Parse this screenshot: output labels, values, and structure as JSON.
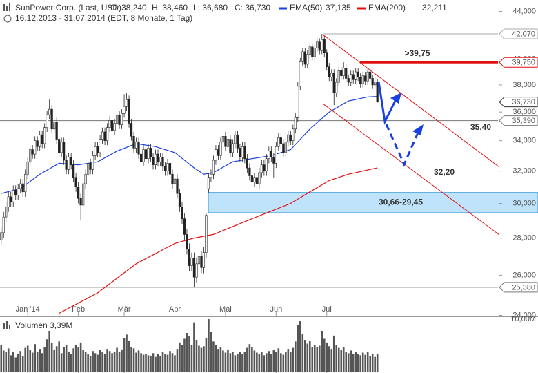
{
  "chart_data": {
    "type": "candlestick",
    "title": "SunPower Corp. (Last, USD)",
    "header_values": [
      "O: 38,240",
      "H: 38,460",
      "L: 36,680",
      "C: 36,730"
    ],
    "subtitle": "16.12.2013 - 31.07.2014 (EDT, 8 Monate, 1 Tag)",
    "xlim": [
      -0.5,
      206
    ],
    "xticks": [
      {
        "value": 11,
        "label": "Jan '14"
      },
      {
        "value": 32,
        "label": "Feb"
      },
      {
        "value": 51,
        "label": "Mär"
      },
      {
        "value": 72,
        "label": "Apr"
      },
      {
        "value": 93,
        "label": "Mai"
      },
      {
        "value": 114,
        "label": "Jun"
      },
      {
        "value": 135,
        "label": "Jul"
      }
    ],
    "ylim": [
      24,
      44
    ],
    "log_scale": true,
    "yticks": [
      {
        "value": 24,
        "label": "24,000"
      },
      {
        "value": 26,
        "label": "26,000"
      },
      {
        "value": 28,
        "label": "28,000"
      },
      {
        "value": 30,
        "label": "30,000"
      },
      {
        "value": 32,
        "label": "32,000"
      },
      {
        "value": 34,
        "label": "34,000"
      },
      {
        "value": 36,
        "label": "36,000"
      },
      {
        "value": 38,
        "label": "38,000"
      },
      {
        "value": 40,
        "label": "40,000"
      },
      {
        "value": 42,
        "label": "42,000"
      },
      {
        "value": 44,
        "label": "44,000"
      }
    ],
    "up_color": "#ffffff",
    "down_color": "#222222",
    "ohlc": [
      [
        27.9,
        28.6,
        27.6,
        28.3
      ],
      [
        28.3,
        29.5,
        28.0,
        29.2
      ],
      [
        29.2,
        30.1,
        28.9,
        29.8
      ],
      [
        29.8,
        30.7,
        29.5,
        30.4
      ],
      [
        30.4,
        30.7,
        29.8,
        30.1
      ],
      [
        30.1,
        31.1,
        29.8,
        30.8
      ],
      [
        30.8,
        31.1,
        30.2,
        30.5
      ],
      [
        30.5,
        31.2,
        30.2,
        30.9
      ],
      [
        30.9,
        31.5,
        30.6,
        31.2
      ],
      [
        31.2,
        31.5,
        30.4,
        30.7
      ],
      [
        30.7,
        32.1,
        30.4,
        31.8
      ],
      [
        31.8,
        32.9,
        31.5,
        32.6
      ],
      [
        32.6,
        33.7,
        32.3,
        33.4
      ],
      [
        33.4,
        33.7,
        32.8,
        33.1
      ],
      [
        33.1,
        34.3,
        32.8,
        34.0
      ],
      [
        34.0,
        34.3,
        33.3,
        33.6
      ],
      [
        33.6,
        34.7,
        33.3,
        34.4
      ],
      [
        34.4,
        34.7,
        33.5,
        33.8
      ],
      [
        33.8,
        35.2,
        33.5,
        34.9
      ],
      [
        34.9,
        36.1,
        34.6,
        35.8
      ],
      [
        35.8,
        36.9,
        35.5,
        36.2
      ],
      [
        36.2,
        36.5,
        34.5,
        34.8
      ],
      [
        34.8,
        35.6,
        34.5,
        35.3
      ],
      [
        35.3,
        35.6,
        33.8,
        34.1
      ],
      [
        34.1,
        34.4,
        32.9,
        33.2
      ],
      [
        33.2,
        34.2,
        32.9,
        33.9
      ],
      [
        33.9,
        34.2,
        32.4,
        32.7
      ],
      [
        32.7,
        33.0,
        31.8,
        32.1
      ],
      [
        32.1,
        33.2,
        31.8,
        32.9
      ],
      [
        32.9,
        33.2,
        32.1,
        32.4
      ],
      [
        32.4,
        32.7,
        31.3,
        31.6
      ],
      [
        31.6,
        31.9,
        30.7,
        31.0
      ],
      [
        31.0,
        31.3,
        30.0,
        30.3
      ],
      [
        30.3,
        30.6,
        29.0,
        29.9
      ],
      [
        29.9,
        31.5,
        29.6,
        31.2
      ],
      [
        31.2,
        32.1,
        30.9,
        31.8
      ],
      [
        31.8,
        32.8,
        31.5,
        32.5
      ],
      [
        32.5,
        32.8,
        31.8,
        32.1
      ],
      [
        32.1,
        33.3,
        31.8,
        33.0
      ],
      [
        33.0,
        33.9,
        32.7,
        33.6
      ],
      [
        33.6,
        33.9,
        32.9,
        33.2
      ],
      [
        33.2,
        34.4,
        32.9,
        34.1
      ],
      [
        34.1,
        34.9,
        33.8,
        34.6
      ],
      [
        34.6,
        34.9,
        33.7,
        34.0
      ],
      [
        34.0,
        35.2,
        33.7,
        34.9
      ],
      [
        34.9,
        35.7,
        34.6,
        35.4
      ],
      [
        35.4,
        35.7,
        34.4,
        34.7
      ],
      [
        34.7,
        35.5,
        34.4,
        35.2
      ],
      [
        35.2,
        36.1,
        34.9,
        35.8
      ],
      [
        35.8,
        36.1,
        34.8,
        35.1
      ],
      [
        35.1,
        36.2,
        34.8,
        35.9
      ],
      [
        35.9,
        37.3,
        35.6,
        36.4
      ],
      [
        36.4,
        37.4,
        36.1,
        36.9
      ],
      [
        36.9,
        37.2,
        34.9,
        35.2
      ],
      [
        35.2,
        35.5,
        34.0,
        34.3
      ],
      [
        34.3,
        34.6,
        33.2,
        33.5
      ],
      [
        33.5,
        34.2,
        33.2,
        33.9
      ],
      [
        33.9,
        34.2,
        32.8,
        33.1
      ],
      [
        33.1,
        33.4,
        32.3,
        32.6
      ],
      [
        32.6,
        33.7,
        32.3,
        33.4
      ],
      [
        33.4,
        33.7,
        32.5,
        32.8
      ],
      [
        32.8,
        33.8,
        32.5,
        33.5
      ],
      [
        33.5,
        33.8,
        32.6,
        32.9
      ],
      [
        32.9,
        33.2,
        32.1,
        32.4
      ],
      [
        32.4,
        33.4,
        32.1,
        33.1
      ],
      [
        33.1,
        33.4,
        32.3,
        32.6
      ],
      [
        32.6,
        33.2,
        32.3,
        32.9
      ],
      [
        32.9,
        33.2,
        32.0,
        32.3
      ],
      [
        32.3,
        32.6,
        31.7,
        32.0
      ],
      [
        32.0,
        32.8,
        31.7,
        32.5
      ],
      [
        32.5,
        32.8,
        31.5,
        31.8
      ],
      [
        31.8,
        32.1,
        30.9,
        31.2
      ],
      [
        31.2,
        31.8,
        30.9,
        31.5
      ],
      [
        31.5,
        31.8,
        30.3,
        30.6
      ],
      [
        30.6,
        30.9,
        29.5,
        29.8
      ],
      [
        29.8,
        30.1,
        28.8,
        29.1
      ],
      [
        29.1,
        29.4,
        27.9,
        28.2
      ],
      [
        28.2,
        28.5,
        27.1,
        27.4
      ],
      [
        27.4,
        27.7,
        26.2,
        26.5
      ],
      [
        26.5,
        27.2,
        26.2,
        26.9
      ],
      [
        26.9,
        27.2,
        25.38,
        25.9
      ],
      [
        25.9,
        26.9,
        25.6,
        26.6
      ],
      [
        26.6,
        27.3,
        26.3,
        27.0
      ],
      [
        27.0,
        27.3,
        26.1,
        26.4
      ],
      [
        26.4,
        27.5,
        26.1,
        27.2
      ],
      [
        27.2,
        29.45,
        26.9,
        29.3
      ],
      [
        30.9,
        31.9,
        30.66,
        31.6
      ],
      [
        31.6,
        32.1,
        31.3,
        31.8
      ],
      [
        31.8,
        33.0,
        31.5,
        32.7
      ],
      [
        32.7,
        33.7,
        32.4,
        33.4
      ],
      [
        33.4,
        33.7,
        32.7,
        33.0
      ],
      [
        33.0,
        34.2,
        32.7,
        33.9
      ],
      [
        33.9,
        34.6,
        33.6,
        34.3
      ],
      [
        34.3,
        34.6,
        33.3,
        33.6
      ],
      [
        33.6,
        34.4,
        33.3,
        34.1
      ],
      [
        34.1,
        34.4,
        32.9,
        33.2
      ],
      [
        33.2,
        34.1,
        32.9,
        33.8
      ],
      [
        33.8,
        34.7,
        33.5,
        34.4
      ],
      [
        34.4,
        34.7,
        33.2,
        33.5
      ],
      [
        33.5,
        33.8,
        32.6,
        32.9
      ],
      [
        32.9,
        33.9,
        32.6,
        33.6
      ],
      [
        33.6,
        33.9,
        32.5,
        32.8
      ],
      [
        32.8,
        33.1,
        31.9,
        32.2
      ],
      [
        32.2,
        32.5,
        31.4,
        31.7
      ],
      [
        31.7,
        32.0,
        31.0,
        31.3
      ],
      [
        31.3,
        31.9,
        31.0,
        31.6
      ],
      [
        31.6,
        31.9,
        30.9,
        31.2
      ],
      [
        31.2,
        32.2,
        30.9,
        31.9
      ],
      [
        31.9,
        32.7,
        31.6,
        32.4
      ],
      [
        32.4,
        32.7,
        31.7,
        32.0
      ],
      [
        32.0,
        33.1,
        31.7,
        32.8
      ],
      [
        32.8,
        33.6,
        32.5,
        33.3
      ],
      [
        33.3,
        33.6,
        32.6,
        32.9
      ],
      [
        32.9,
        33.2,
        31.6,
        32.5
      ],
      [
        32.5,
        33.9,
        32.2,
        33.6
      ],
      [
        33.6,
        34.5,
        33.3,
        34.2
      ],
      [
        34.2,
        34.5,
        33.5,
        33.8
      ],
      [
        33.8,
        34.1,
        32.9,
        33.2
      ],
      [
        33.2,
        34.2,
        32.9,
        33.9
      ],
      [
        33.9,
        34.7,
        33.6,
        34.4
      ],
      [
        34.4,
        34.7,
        33.7,
        34.0
      ],
      [
        34.0,
        35.1,
        33.7,
        34.8
      ],
      [
        34.8,
        35.9,
        34.5,
        35.6
      ],
      [
        35.6,
        38.2,
        35.3,
        37.9
      ],
      [
        37.9,
        40.1,
        37.6,
        39.8
      ],
      [
        39.8,
        40.9,
        39.5,
        40.6
      ],
      [
        40.6,
        40.9,
        39.3,
        39.6
      ],
      [
        39.6,
        40.7,
        39.3,
        40.4
      ],
      [
        40.4,
        41.3,
        40.1,
        41.0
      ],
      [
        41.0,
        41.3,
        39.9,
        40.2
      ],
      [
        40.2,
        41.2,
        39.9,
        40.9
      ],
      [
        40.9,
        41.7,
        40.6,
        41.4
      ],
      [
        41.4,
        41.7,
        40.4,
        40.7
      ],
      [
        40.7,
        42.07,
        40.4,
        41.6
      ],
      [
        41.6,
        41.9,
        40.2,
        40.5
      ],
      [
        40.5,
        40.8,
        39.1,
        39.4
      ],
      [
        39.4,
        39.7,
        38.3,
        38.6
      ],
      [
        38.6,
        39.2,
        38.3,
        38.9
      ],
      [
        38.9,
        39.2,
        36.5,
        37.4
      ],
      [
        37.4,
        38.5,
        37.1,
        38.2
      ],
      [
        38.2,
        39.4,
        37.9,
        39.1
      ],
      [
        39.1,
        39.4,
        38.4,
        38.7
      ],
      [
        38.7,
        39.75,
        38.4,
        39.3
      ],
      [
        39.3,
        39.6,
        38.2,
        38.5
      ],
      [
        38.5,
        38.8,
        37.9,
        38.2
      ],
      [
        38.2,
        39.1,
        37.9,
        38.8
      ],
      [
        38.8,
        39.1,
        38.1,
        38.4
      ],
      [
        38.4,
        39.3,
        38.1,
        39.0
      ],
      [
        39.0,
        39.3,
        38.3,
        38.6
      ],
      [
        38.6,
        38.9,
        37.8,
        38.1
      ],
      [
        38.1,
        39.0,
        37.8,
        38.7
      ],
      [
        38.7,
        39.0,
        38.0,
        38.3
      ],
      [
        38.3,
        39.3,
        38.0,
        39.0
      ],
      [
        39.0,
        39.3,
        38.2,
        38.5
      ],
      [
        38.5,
        38.8,
        37.7,
        38.0
      ],
      [
        38.0,
        38.6,
        37.7,
        38.24
      ],
      [
        38.24,
        38.46,
        36.68,
        36.73
      ]
    ],
    "series": [
      {
        "name": "EMA(50)",
        "value_label": "37,135",
        "color": "#1a3fe0",
        "x": [
          0,
          8,
          16,
          24,
          32,
          40,
          48,
          56,
          64,
          72,
          80,
          84,
          88,
          96,
          104,
          112,
          120,
          128,
          136,
          144,
          152,
          156
        ],
        "values": [
          30.6,
          30.9,
          31.8,
          32.5,
          32.4,
          32.6,
          33.3,
          33.8,
          33.6,
          33.2,
          32.2,
          31.8,
          31.9,
          32.6,
          32.8,
          33.0,
          33.4,
          34.8,
          36.0,
          36.8,
          37.1,
          37.135
        ]
      },
      {
        "name": "EMA(200)",
        "value_label": "32,211",
        "color": "#e01010",
        "x": [
          24,
          40,
          56,
          72,
          80,
          88,
          104,
          120,
          128,
          136,
          144,
          156
        ],
        "values": [
          24.1,
          25.1,
          26.6,
          27.7,
          28.0,
          28.2,
          29.1,
          30.0,
          30.7,
          31.4,
          31.8,
          32.211
        ]
      }
    ],
    "price_levels": [
      {
        "value": 42.07,
        "label": "42,070",
        "color": "#aaaaaa"
      },
      {
        "value": 39.75,
        "label": "39,750",
        "color": "#e01010"
      },
      {
        "value": 36.73,
        "label": "36,730",
        "color": "#333333"
      },
      {
        "value": 35.39,
        "label": "35,390",
        "color": "#777777"
      },
      {
        "value": 25.38,
        "label": "25,380",
        "color": "#777777"
      }
    ],
    "annotations": [
      {
        "label": ">39,75",
        "color": "#e01010"
      },
      {
        "label": "35,40",
        "color": "#1a3fe0"
      },
      {
        "label": "32,20",
        "color": "#1a3fe0"
      }
    ],
    "gap_zone": {
      "values": [
        29.45,
        30.66
      ],
      "label": "30,66-29,45"
    },
    "volume": {
      "label": "Volumen 3,39M",
      "color": "#555555",
      "ylim": [
        0,
        10
      ],
      "yticks": [
        {
          "value": 10,
          "label": "10,00M"
        }
      ],
      "values": [
        5.2,
        4.1,
        3.8,
        4.5,
        3.2,
        3.9,
        2.8,
        3.4,
        4.0,
        3.1,
        4.6,
        5.0,
        4.2,
        3.7,
        5.3,
        3.9,
        4.4,
        3.6,
        4.8,
        6.2,
        7.8,
        5.5,
        4.3,
        4.9,
        5.8,
        3.6,
        4.7,
        5.1,
        3.9,
        3.4,
        4.5,
        5.2,
        4.8,
        5.6,
        4.2,
        3.8,
        3.5,
        3.1,
        4.0,
        3.6,
        3.3,
        4.2,
        3.9,
        3.4,
        4.4,
        4.0,
        3.6,
        3.9,
        4.6,
        3.8,
        4.3,
        6.4,
        7.1,
        5.9,
        4.8,
        4.5,
        3.7,
        4.1,
        3.6,
        3.3,
        3.5,
        3.2,
        3.0,
        3.6,
        2.9,
        3.4,
        3.1,
        3.8,
        3.5,
        3.3,
        4.0,
        3.6,
        3.2,
        4.4,
        5.6,
        5.1,
        6.3,
        7.4,
        6.8,
        5.2,
        9.4,
        6.1,
        5.0,
        4.6,
        4.9,
        6.5,
        10.0,
        7.6,
        5.8,
        5.2,
        4.4,
        4.8,
        4.1,
        3.7,
        4.3,
        3.6,
        3.9,
        3.2,
        3.5,
        3.8,
        3.4,
        3.9,
        4.6,
        5.3,
        4.8,
        4.1,
        3.7,
        3.5,
        3.9,
        3.2,
        3.6,
        4.0,
        3.5,
        4.2,
        3.8,
        4.5,
        3.6,
        3.3,
        3.9,
        4.4,
        3.9,
        4.6,
        5.8,
        8.9,
        9.6,
        7.2,
        6.1,
        5.4,
        5.9,
        4.8,
        5.2,
        4.7,
        5.0,
        7.8,
        6.3,
        5.6,
        4.9,
        4.4,
        6.9,
        5.1,
        4.6,
        4.2,
        4.8,
        3.9,
        3.6,
        4.1,
        3.5,
        3.8,
        3.4,
        3.2,
        3.7,
        3.3,
        3.9,
        3.1,
        3.5,
        2.9,
        3.39
      ]
    }
  }
}
